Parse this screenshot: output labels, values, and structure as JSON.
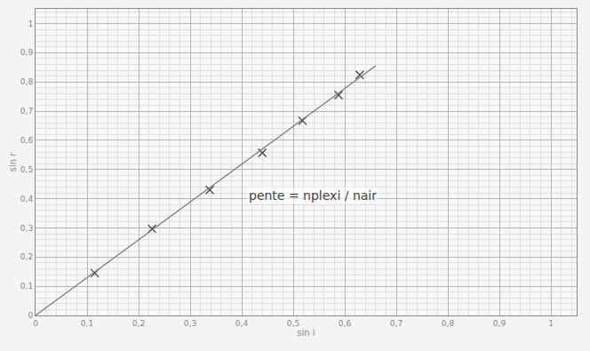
{
  "chart_data": {
    "type": "scatter",
    "x_label": "sin i",
    "y_label": "sin r",
    "xlim": [
      0,
      1.05
    ],
    "ylim": [
      0,
      1.05
    ],
    "xticks": [
      0,
      {
        "value": 0.1,
        "label": "0,1"
      },
      {
        "value": 0.2,
        "label": "0,2"
      },
      {
        "value": 0.3,
        "label": "0,3"
      },
      {
        "value": 0.4,
        "label": "0,4"
      },
      {
        "value": 0.5,
        "label": "0,5"
      },
      {
        "value": 0.6,
        "label": "0,6"
      },
      {
        "value": 0.7,
        "label": "0,7"
      },
      {
        "value": 0.8,
        "label": "0,8"
      },
      {
        "value": 0.9,
        "label": "0,9"
      },
      1
    ],
    "yticks": [
      0,
      {
        "value": 0.1,
        "label": "0,1"
      },
      {
        "value": 0.2,
        "label": "0,2"
      },
      {
        "value": 0.3,
        "label": "0,3"
      },
      {
        "value": 0.4,
        "label": "0,4"
      },
      {
        "value": 0.5,
        "label": "0,5"
      },
      {
        "value": 0.6,
        "label": "0,6"
      },
      {
        "value": 0.7,
        "label": "0,7"
      },
      {
        "value": 0.8,
        "label": "0,8"
      },
      {
        "value": 0.9,
        "label": "0,9"
      },
      1
    ],
    "grid": true,
    "annotations": [
      {
        "text": "pente = nplexi / nair",
        "x": 0.41,
        "y": 0.41
      }
    ],
    "series": [
      {
        "type": "scatter",
        "marker": "x",
        "color": "#444444",
        "x": [
          0.115,
          0.226,
          0.338,
          0.44,
          0.518,
          0.588,
          0.629
        ],
        "values": [
          0.145,
          0.297,
          0.43,
          0.557,
          0.667,
          0.755,
          0.824
        ]
      },
      {
        "type": "line",
        "line_style": "solid",
        "color": "#777777",
        "x": [
          0,
          0.66
        ],
        "values": [
          0,
          0.855
        ]
      }
    ]
  }
}
